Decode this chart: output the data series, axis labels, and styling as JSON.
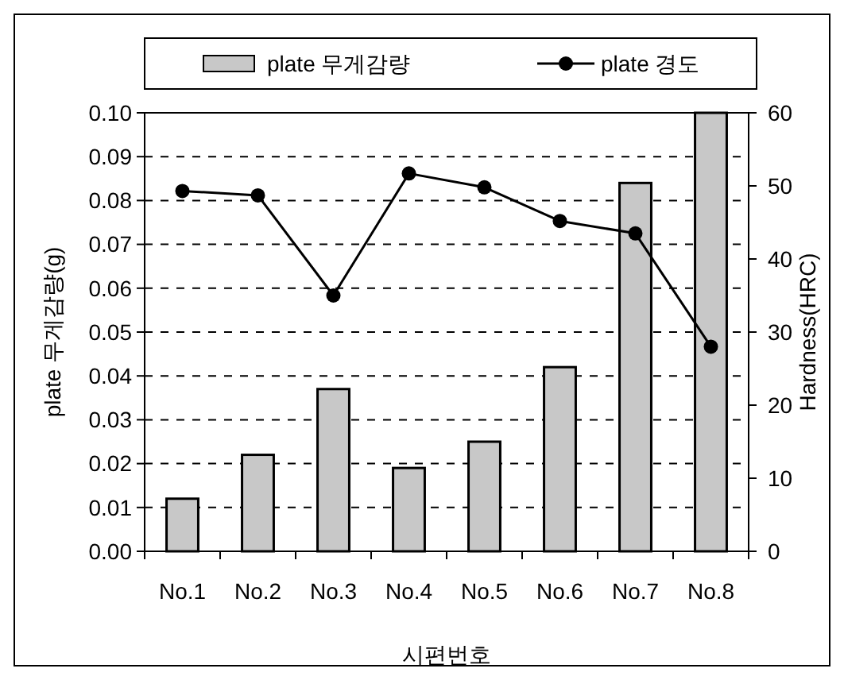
{
  "chart_data": {
    "type": "bar",
    "xlabel": "시편번호",
    "ylabel": "plate 무게감량(g)",
    "y2label": "Hardness(HRC)",
    "categories": [
      "No.1",
      "No.2",
      "No.3",
      "No.4",
      "No.5",
      "No.6",
      "No.7",
      "No.8"
    ],
    "series": [
      {
        "name": "plate 무게감량",
        "color": "#c8c8c8",
        "values": [
          0.012,
          0.022,
          0.037,
          0.019,
          0.025,
          0.042,
          0.084,
          0.1
        ]
      },
      {
        "name": "plate 경도",
        "type": "line",
        "axis": "y2",
        "color": "#000000",
        "marker": "circle",
        "values": [
          49.3,
          48.7,
          35,
          51.7,
          49.8,
          45.2,
          43.5,
          28
        ]
      }
    ],
    "ylim": [
      0,
      0.1
    ],
    "yticks": [
      {
        "value": 0,
        "label": "0.00"
      },
      {
        "value": 0.01,
        "label": "0.01"
      },
      {
        "value": 0.02,
        "label": "0.02"
      },
      {
        "value": 0.03,
        "label": "0.03"
      },
      {
        "value": 0.04,
        "label": "0.04"
      },
      {
        "value": 0.05,
        "label": "0.05"
      },
      {
        "value": 0.06,
        "label": "0.06"
      },
      {
        "value": 0.07,
        "label": "0.07"
      },
      {
        "value": 0.08,
        "label": "0.08"
      },
      {
        "value": 0.09,
        "label": "0.09"
      },
      {
        "value": 0.1,
        "label": "0.10"
      }
    ],
    "y2lim": [
      0,
      60
    ],
    "y2ticks": [
      0,
      10,
      20,
      30,
      40,
      50,
      60
    ],
    "grid": "y",
    "legend": "top"
  }
}
